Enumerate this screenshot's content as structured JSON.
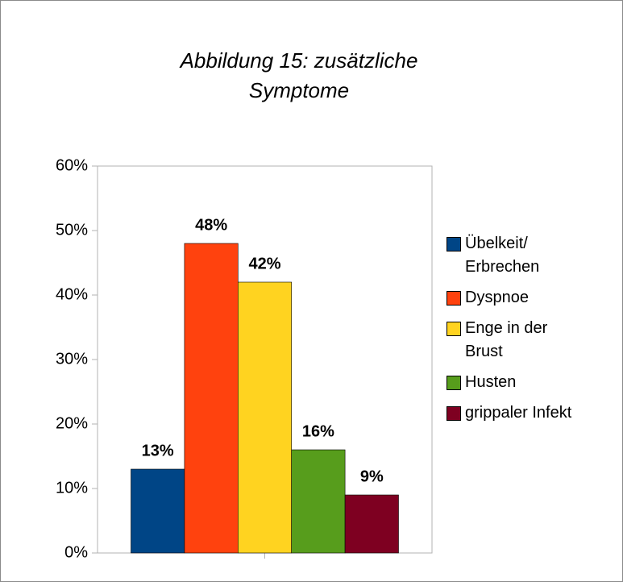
{
  "chart_data": {
    "type": "bar",
    "title": "Abbildung 15: zusätzliche Symptome",
    "categories": [
      null
    ],
    "series": [
      {
        "name": "Übelkeit/ Erbrechen",
        "color": "#004586",
        "values": [
          13
        ],
        "value_labels": [
          "13%"
        ]
      },
      {
        "name": "Dyspnoe",
        "color": "#ff420e",
        "values": [
          48
        ],
        "value_labels": [
          "48%"
        ]
      },
      {
        "name": "Enge in der Brust",
        "color": "#ffd320",
        "values": [
          42
        ],
        "value_labels": [
          "42%"
        ]
      },
      {
        "name": "Husten",
        "color": "#579d1c",
        "values": [
          16
        ],
        "value_labels": [
          "16%"
        ]
      },
      {
        "name": "grippaler Infekt",
        "color": "#7e0021",
        "values": [
          9
        ],
        "value_labels": [
          "9%"
        ]
      }
    ],
    "ylim": [
      0,
      60
    ],
    "yticks": [
      {
        "value": 0,
        "label": "0%"
      },
      {
        "value": 10,
        "label": "10%"
      },
      {
        "value": 20,
        "label": "20%"
      },
      {
        "value": 30,
        "label": "30%"
      },
      {
        "value": 40,
        "label": "40%"
      },
      {
        "value": 50,
        "label": "50%"
      },
      {
        "value": 60,
        "label": "60%"
      }
    ],
    "legend": "right"
  }
}
